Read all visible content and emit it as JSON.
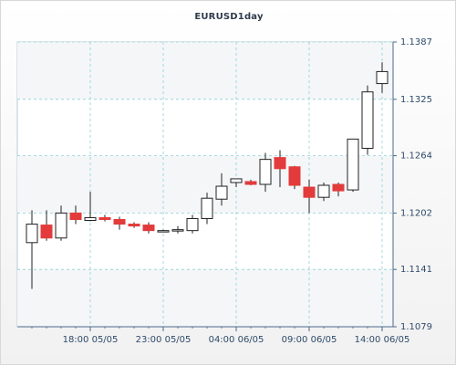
{
  "chart_data": {
    "type": "candlestick",
    "title": "EURUSD1day",
    "y_ticks": [
      "1.1387",
      "1.1325",
      "1.1264",
      "1.1202",
      "1.1141",
      "1.1079"
    ],
    "y_tick_values": [
      1.1387,
      1.1325,
      1.1264,
      1.1202,
      1.1141,
      1.1079
    ],
    "ylim": [
      1.1079,
      1.1387
    ],
    "x_ticks": [
      {
        "label": "18:00 05/05",
        "index": 4
      },
      {
        "label": "23:00 05/05",
        "index": 9
      },
      {
        "label": "04:00 06/05",
        "index": 14
      },
      {
        "label": "09:00 06/05",
        "index": 19
      },
      {
        "label": "14:00 06/05",
        "index": 24
      }
    ],
    "grid": true,
    "up_color": "#ffffff",
    "down_color": "#e33b3b",
    "candles": [
      {
        "open": 1.117,
        "high": 1.1205,
        "low": 1.112,
        "close": 1.119
      },
      {
        "open": 1.1189,
        "high": 1.1205,
        "low": 1.1172,
        "close": 1.1175
      },
      {
        "open": 1.1175,
        "high": 1.121,
        "low": 1.1172,
        "close": 1.1202
      },
      {
        "open": 1.1202,
        "high": 1.121,
        "low": 1.119,
        "close": 1.1195
      },
      {
        "open": 1.1194,
        "high": 1.1225,
        "low": 1.1193,
        "close": 1.1197
      },
      {
        "open": 1.1197,
        "high": 1.12,
        "low": 1.1193,
        "close": 1.1195
      },
      {
        "open": 1.1195,
        "high": 1.1198,
        "low": 1.1184,
        "close": 1.119
      },
      {
        "open": 1.119,
        "high": 1.1192,
        "low": 1.1186,
        "close": 1.1188
      },
      {
        "open": 1.1189,
        "high": 1.1192,
        "low": 1.118,
        "close": 1.1183
      },
      {
        "open": 1.1183,
        "high": 1.1184,
        "low": 1.1182,
        "close": 1.1183
      },
      {
        "open": 1.1183,
        "high": 1.1188,
        "low": 1.118,
        "close": 1.1184
      },
      {
        "open": 1.1183,
        "high": 1.12,
        "low": 1.118,
        "close": 1.1196
      },
      {
        "open": 1.1196,
        "high": 1.1224,
        "low": 1.119,
        "close": 1.1218
      },
      {
        "open": 1.1217,
        "high": 1.1245,
        "low": 1.121,
        "close": 1.1231
      },
      {
        "open": 1.1235,
        "high": 1.1239,
        "low": 1.123,
        "close": 1.1239
      },
      {
        "open": 1.1236,
        "high": 1.1238,
        "low": 1.1232,
        "close": 1.1233
      },
      {
        "open": 1.1233,
        "high": 1.1267,
        "low": 1.1225,
        "close": 1.126
      },
      {
        "open": 1.1262,
        "high": 1.127,
        "low": 1.123,
        "close": 1.125
      },
      {
        "open": 1.1252,
        "high": 1.1253,
        "low": 1.1228,
        "close": 1.1232
      },
      {
        "open": 1.123,
        "high": 1.1238,
        "low": 1.1202,
        "close": 1.1219
      },
      {
        "open": 1.1219,
        "high": 1.1235,
        "low": 1.1215,
        "close": 1.1232
      },
      {
        "open": 1.1233,
        "high": 1.1235,
        "low": 1.122,
        "close": 1.1226
      },
      {
        "open": 1.1227,
        "high": 1.1282,
        "low": 1.1225,
        "close": 1.1282
      },
      {
        "open": 1.1272,
        "high": 1.134,
        "low": 1.1265,
        "close": 1.1333
      },
      {
        "open": 1.1342,
        "high": 1.1365,
        "low": 1.1332,
        "close": 1.1355
      }
    ]
  }
}
